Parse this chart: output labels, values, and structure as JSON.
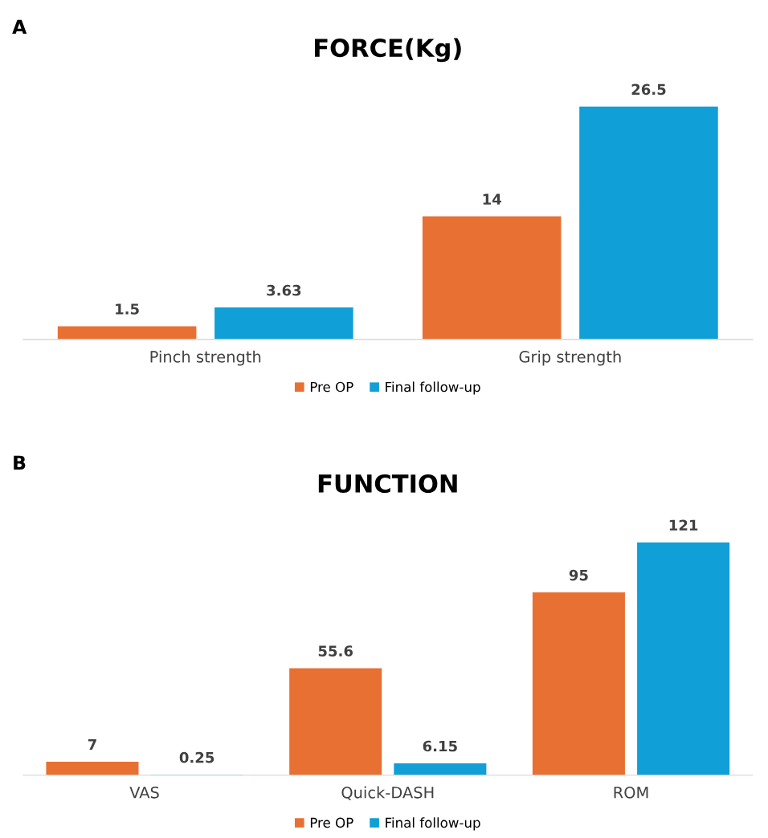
{
  "chart_data": [
    {
      "type": "bar",
      "title": "FORCE(Kg)",
      "annotations": [
        "A"
      ],
      "categories": [
        "Pinch strength",
        "Grip strength"
      ],
      "series": [
        {
          "name": "Pre OP",
          "color": "#e87033",
          "values": [
            1.5,
            14
          ]
        },
        {
          "name": "Final follow-up",
          "color": "#109fd7",
          "values": [
            3.63,
            26.5
          ]
        }
      ],
      "data_labels": true,
      "legend": "bottom",
      "grid": false,
      "tick_labels": "x"
    },
    {
      "type": "bar",
      "title": "FUNCTION",
      "annotations": [
        "B"
      ],
      "categories": [
        "VAS",
        "Quick-DASH",
        "ROM"
      ],
      "series": [
        {
          "name": "Pre OP",
          "color": "#e87033",
          "values": [
            7,
            55.6,
            95
          ]
        },
        {
          "name": "Final follow-up",
          "color": "#109fd7",
          "values": [
            0.25,
            6.15,
            121
          ]
        }
      ],
      "data_labels": true,
      "legend": "bottom",
      "grid": false,
      "tick_labels": "x"
    }
  ]
}
